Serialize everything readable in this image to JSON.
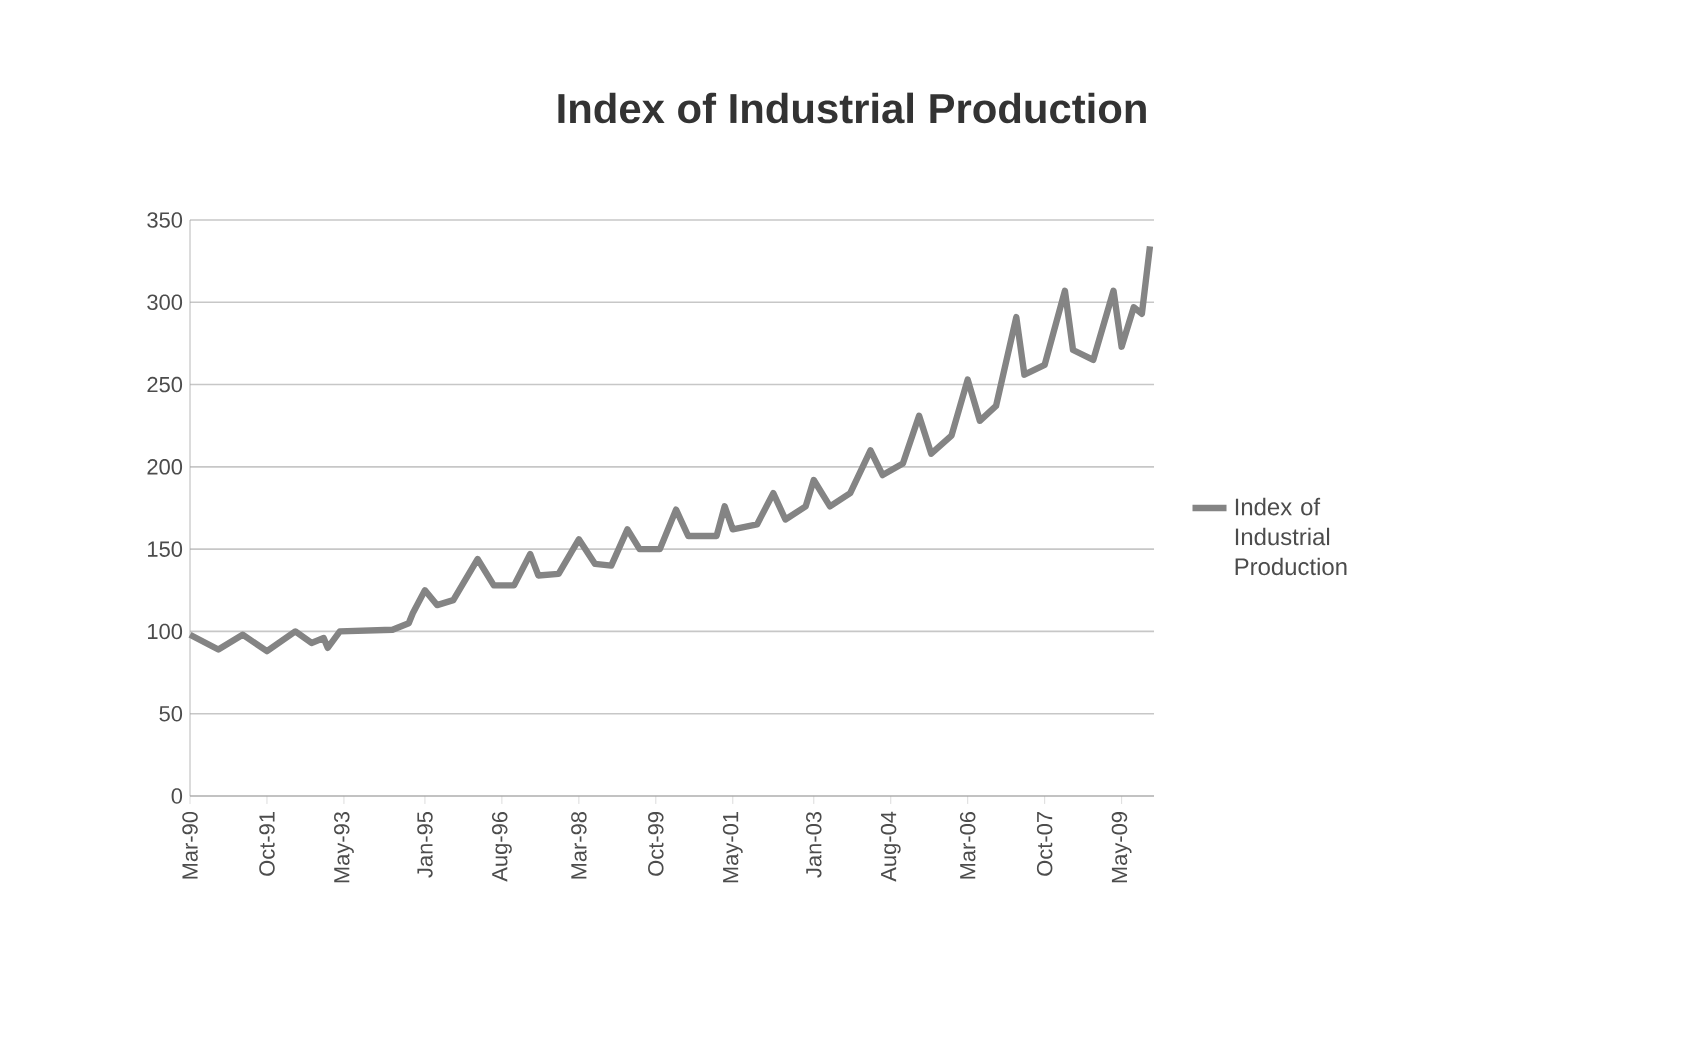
{
  "chart_data": {
    "type": "line",
    "title": "Index of Industrial Production",
    "x": [
      "1990-03",
      "1990-10",
      "1991-04",
      "1991-10",
      "1992-05",
      "1992-09",
      "1992-12",
      "1993-01",
      "1993-04",
      "1994-05",
      "1994-09",
      "1994-10",
      "1995-01",
      "1995-04",
      "1995-08",
      "1996-02",
      "1996-06",
      "1996-11",
      "1997-03",
      "1997-05",
      "1997-10",
      "1998-03",
      "1998-07",
      "1998-11",
      "1999-03",
      "1999-06",
      "1999-11",
      "2000-03",
      "2000-06",
      "2001-01",
      "2001-03",
      "2001-05",
      "2001-11",
      "2002-03",
      "2002-06",
      "2002-11",
      "2003-01",
      "2003-05",
      "2003-10",
      "2004-03",
      "2004-06",
      "2004-11",
      "2005-03",
      "2005-06",
      "2005-11",
      "2006-03",
      "2006-06",
      "2006-10",
      "2007-03",
      "2007-05",
      "2007-10",
      "2008-03",
      "2008-05",
      "2008-10",
      "2009-03",
      "2009-05",
      "2009-08",
      "2009-10",
      "2009-12"
    ],
    "series": [
      {
        "name": "Index of Industrial Production",
        "color": "#848484",
        "values": [
          98,
          89,
          98,
          88,
          100,
          93,
          96,
          90,
          100,
          101,
          105,
          111,
          125,
          116,
          119,
          144,
          128,
          128,
          147,
          134,
          135,
          156,
          141,
          140,
          162,
          150,
          150,
          174,
          158,
          158,
          176,
          162,
          165,
          184,
          168,
          176,
          192,
          176,
          184,
          210,
          195,
          202,
          231,
          208,
          219,
          253,
          228,
          237,
          291,
          256,
          262,
          307,
          271,
          265,
          307,
          273,
          297,
          293,
          334
        ]
      }
    ],
    "xlim": [
      "1990-03",
      "2010-01"
    ],
    "xticks": [
      {
        "value": "1990-03",
        "label": "Mar-90"
      },
      {
        "value": "1991-10",
        "label": "Oct-91"
      },
      {
        "value": "1993-05",
        "label": "May-93"
      },
      {
        "value": "1995-01",
        "label": "Jan-95"
      },
      {
        "value": "1996-08",
        "label": "Aug-96"
      },
      {
        "value": "1998-03",
        "label": "Mar-98"
      },
      {
        "value": "1999-10",
        "label": "Oct-99"
      },
      {
        "value": "2001-05",
        "label": "May-01"
      },
      {
        "value": "2003-01",
        "label": "Jan-03"
      },
      {
        "value": "2004-08",
        "label": "Aug-04"
      },
      {
        "value": "2006-03",
        "label": "Mar-06"
      },
      {
        "value": "2007-10",
        "label": "Oct-07"
      },
      {
        "value": "2009-05",
        "label": "May-09"
      }
    ],
    "ylim": [
      0,
      350
    ],
    "yticks": [
      0,
      50,
      100,
      150,
      200,
      250,
      300,
      350
    ],
    "grid": "y",
    "legend": "right",
    "line_style": "solid",
    "marker": "none"
  }
}
